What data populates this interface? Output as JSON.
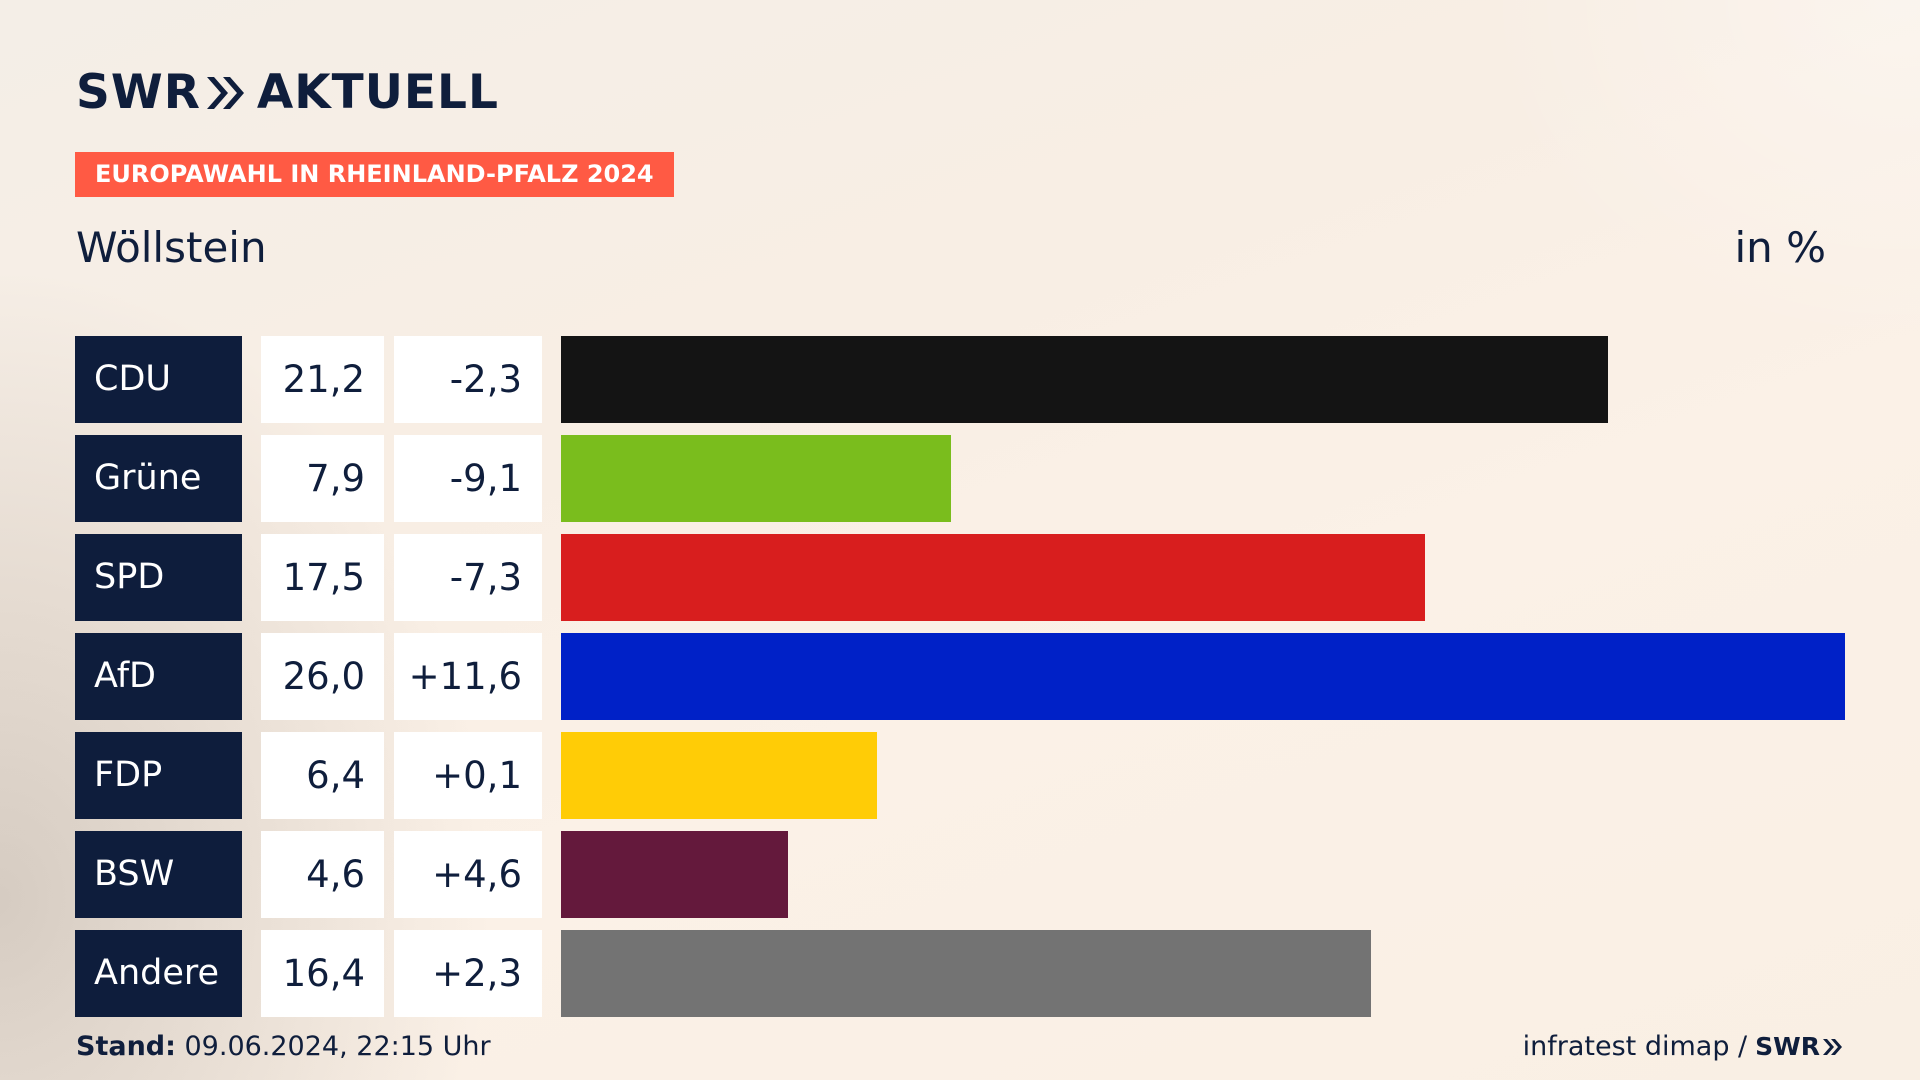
{
  "header": {
    "logo_left": "SWR",
    "logo_right": "AKTUELL",
    "tag": "EUROPAWAHL IN RHEINLAND-PFALZ 2024",
    "place": "Wöllstein",
    "unit": "in %"
  },
  "colors": {
    "navy": "#0e1d3c",
    "tag": "#ff5a44",
    "background": "#f8eee4"
  },
  "chart_data": {
    "type": "bar",
    "orientation": "horizontal",
    "title": "Wöllstein",
    "unit": "in %",
    "categories": [
      "CDU",
      "Grüne",
      "SPD",
      "AfD",
      "FDP",
      "BSW",
      "Andere"
    ],
    "values": [
      21.2,
      7.9,
      17.5,
      26.0,
      6.4,
      4.6,
      16.4
    ],
    "value_labels": [
      "21,2",
      "7,9",
      "17,5",
      "26,0",
      "6,4",
      "4,6",
      "16,4"
    ],
    "changes": [
      -2.3,
      -9.1,
      -7.3,
      11.6,
      0.1,
      4.6,
      2.3
    ],
    "change_labels": [
      "-2,3",
      "-9,1",
      "-7,3",
      "+11,6",
      "+0,1",
      "+4,6",
      "+2,3"
    ],
    "colors": [
      "#141414",
      "#7abd1d",
      "#d81e1e",
      "#0021c7",
      "#ffcc06",
      "#64193c",
      "#737373"
    ],
    "xlim": [
      0,
      26.0
    ],
    "grid": false,
    "legend": "none"
  },
  "footer": {
    "stand_label": "Stand:",
    "stand_value": " 09.06.2024, 22:15 Uhr",
    "source": "infratest dimap /",
    "source_logo": "SWR"
  }
}
